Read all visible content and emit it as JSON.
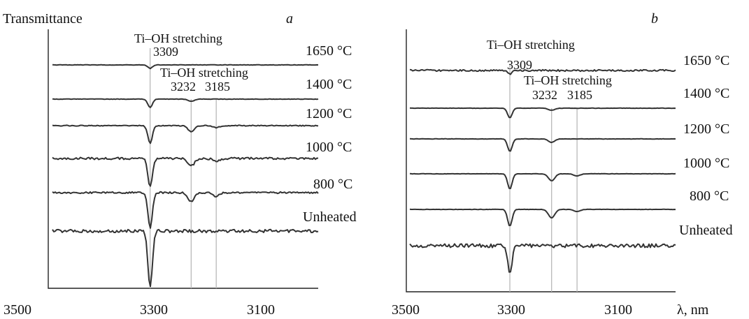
{
  "figure": {
    "ylabel": "Transmittance",
    "xunit": "λ, nm"
  },
  "chart_data": [
    {
      "type": "line",
      "panel": "a",
      "xlim": [
        3500,
        3010
      ],
      "xticks": [
        "3500",
        "3300",
        "3100"
      ],
      "xtick_values": [
        3500,
        3300,
        3100
      ],
      "series": [
        {
          "name": "1650 °C",
          "dips": [
            {
              "x": 3309,
              "depth": 5
            }
          ]
        },
        {
          "name": "1400 °C",
          "dips": [
            {
              "x": 3309,
              "depth": 12
            },
            {
              "x": 3232,
              "depth": 3
            }
          ]
        },
        {
          "name": "1200 °C",
          "dips": [
            {
              "x": 3309,
              "depth": 25
            },
            {
              "x": 3232,
              "depth": 9
            },
            {
              "x": 3185,
              "depth": 3
            }
          ]
        },
        {
          "name": "1000 °C",
          "dips": [
            {
              "x": 3309,
              "depth": 40
            },
            {
              "x": 3232,
              "depth": 11
            },
            {
              "x": 3185,
              "depth": 5
            }
          ]
        },
        {
          "name": "800 °C",
          "dips": [
            {
              "x": 3309,
              "depth": 50
            },
            {
              "x": 3232,
              "depth": 13
            },
            {
              "x": 3185,
              "depth": 5
            }
          ]
        },
        {
          "name": "Unheated",
          "dips": [
            {
              "x": 3309,
              "depth": 80
            }
          ]
        }
      ],
      "annotations": [
        {
          "text": "Ti–OH stretching"
        },
        {
          "text": "3309",
          "x": 3309
        },
        {
          "text": "Ti–OH stretching"
        },
        {
          "text": "3232",
          "x": 3232
        },
        {
          "text": "3185",
          "x": 3185
        }
      ]
    },
    {
      "type": "line",
      "panel": "b",
      "xlim": [
        3500,
        3010
      ],
      "xticks": [
        "3500",
        "3300",
        "3100"
      ],
      "xtick_values": [
        3500,
        3300,
        3100
      ],
      "series": [
        {
          "name": "1650 °C",
          "dips": [
            {
              "x": 3309,
              "depth": 5
            }
          ]
        },
        {
          "name": "1400 °C",
          "dips": [
            {
              "x": 3309,
              "depth": 14
            },
            {
              "x": 3232,
              "depth": 3
            }
          ]
        },
        {
          "name": "1200 °C",
          "dips": [
            {
              "x": 3309,
              "depth": 18
            },
            {
              "x": 3232,
              "depth": 5
            }
          ]
        },
        {
          "name": "1000 °C",
          "dips": [
            {
              "x": 3309,
              "depth": 22
            },
            {
              "x": 3232,
              "depth": 10
            },
            {
              "x": 3185,
              "depth": 3
            }
          ]
        },
        {
          "name": "800 °C",
          "dips": [
            {
              "x": 3309,
              "depth": 24
            },
            {
              "x": 3232,
              "depth": 12
            },
            {
              "x": 3185,
              "depth": 3
            }
          ]
        },
        {
          "name": "Unheated",
          "dips": [
            {
              "x": 3309,
              "depth": 38
            }
          ]
        }
      ],
      "annotations": [
        {
          "text": "Ti–OH stretching"
        },
        {
          "text": "3309",
          "x": 3309
        },
        {
          "text": "Ti–OH stretching"
        },
        {
          "text": "3232",
          "x": 3232
        },
        {
          "text": "3185",
          "x": 3185
        }
      ]
    }
  ]
}
